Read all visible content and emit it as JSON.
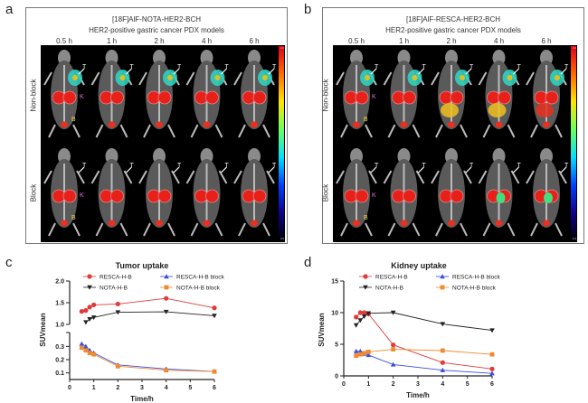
{
  "panels": {
    "a": {
      "letter": "a",
      "title1": "[18F]AlF-NOTA-HER2-BCH",
      "title2": "HER2-positive gastric cancer PDX models",
      "times": [
        "0.5 h",
        "1 h",
        "2 h",
        "4 h",
        "6 h"
      ],
      "rows": [
        "Non-block",
        "Block"
      ],
      "colorbar_max": "2.0",
      "colorbar_min": "0.0",
      "organ_labels": [
        "T",
        "K",
        "B"
      ]
    },
    "b": {
      "letter": "b",
      "title1": "[18F]AlF-RESCA-HER2-BCH",
      "title2": "HER2-positive gastric cancer PDX models",
      "times": [
        "0.5 h",
        "1 h",
        "2 h",
        "4 h",
        "6 h"
      ],
      "rows": [
        "Non-block",
        "Block"
      ],
      "colorbar_max": "2.0",
      "colorbar_min": "0.0",
      "organ_labels": [
        "T",
        "K",
        "B"
      ]
    },
    "c": {
      "letter": "c"
    },
    "d": {
      "letter": "d"
    }
  },
  "colors": {
    "RESCA-H-B": "#e03a3a",
    "NOTA-H-B": "#222222",
    "RESCA-H-B block": "#3a4ee0",
    "NOTA-H-B block": "#f08a30"
  },
  "chart_data": [
    {
      "type": "line",
      "title": "Tumor uptake",
      "xlabel": "Time/h",
      "ylabel": "SUVmean",
      "xlim": [
        0,
        6
      ],
      "xticks": [
        "0",
        "1",
        "2",
        "3",
        "4",
        "5",
        "6"
      ],
      "y_broken": true,
      "ylim_upper": [
        1.0,
        2.0
      ],
      "yticks_upper": [
        "1.0",
        "1.5",
        "2.0"
      ],
      "ylim_lower": [
        0.05,
        0.35
      ],
      "yticks_lower": [
        "0.1",
        "0.2",
        "0.3"
      ],
      "legend": [
        "RESCA-H-B",
        "RESCA-H-B block",
        "NOTA-H-B",
        "NOTA-H-B block"
      ],
      "legend_position": "top",
      "series": [
        {
          "name": "RESCA-H-B",
          "marker": "circle",
          "x": [
            0.5,
            0.67,
            0.83,
            1,
            2,
            4,
            6
          ],
          "y": [
            1.3,
            1.32,
            1.4,
            1.45,
            1.47,
            1.6,
            1.38
          ]
        },
        {
          "name": "NOTA-H-B",
          "marker": "triangle-down",
          "x": [
            0.67,
            0.83,
            1,
            2,
            4,
            6
          ],
          "y": [
            1.05,
            1.12,
            1.16,
            1.28,
            1.29,
            1.2
          ]
        },
        {
          "name": "RESCA-H-B block",
          "marker": "triangle-up",
          "x": [
            0.5,
            0.67,
            0.83,
            1,
            2,
            4,
            6
          ],
          "y": [
            0.32,
            0.3,
            0.27,
            0.25,
            0.16,
            0.13,
            0.11
          ]
        },
        {
          "name": "NOTA-H-B block",
          "marker": "square",
          "x": [
            0.5,
            0.67,
            0.83,
            1,
            2,
            4,
            6
          ],
          "y": [
            0.29,
            0.27,
            0.25,
            0.24,
            0.15,
            0.12,
            0.11
          ]
        }
      ]
    },
    {
      "type": "line",
      "title": "Kidney uptake",
      "xlabel": "Time/h",
      "ylabel": "SUVmean",
      "xlim": [
        0,
        6
      ],
      "xticks": [
        "0",
        "1",
        "2",
        "3",
        "4",
        "5",
        "6"
      ],
      "ylim": [
        0,
        15
      ],
      "yticks": [
        "0",
        "5",
        "10",
        "15"
      ],
      "legend": [
        "RESCA-H-B",
        "RESCA-H-B block",
        "NOTA-H-B",
        "NOTA-H-B block"
      ],
      "legend_position": "top",
      "series": [
        {
          "name": "RESCA-H-B",
          "marker": "circle",
          "x": [
            0.5,
            0.67,
            0.83,
            1,
            2,
            4,
            6
          ],
          "y": [
            9.3,
            10,
            10,
            9.8,
            4.9,
            2.1,
            1.1
          ]
        },
        {
          "name": "NOTA-H-B",
          "marker": "triangle-down",
          "x": [
            0.5,
            0.67,
            0.83,
            1,
            2,
            4,
            6
          ],
          "y": [
            8.0,
            8.8,
            9.4,
            9.9,
            10,
            8.2,
            7.2
          ]
        },
        {
          "name": "RESCA-H-B block",
          "marker": "triangle-up",
          "x": [
            0.5,
            0.67,
            0.83,
            1,
            2,
            4,
            6
          ],
          "y": [
            3.9,
            3.9,
            3.5,
            3.3,
            1.8,
            0.9,
            0.4
          ]
        },
        {
          "name": "NOTA-H-B block",
          "marker": "square",
          "x": [
            0.5,
            0.67,
            0.83,
            1,
            2,
            4,
            6
          ],
          "y": [
            3.2,
            3.4,
            3.6,
            3.8,
            4.2,
            4.0,
            3.4
          ]
        }
      ]
    }
  ]
}
